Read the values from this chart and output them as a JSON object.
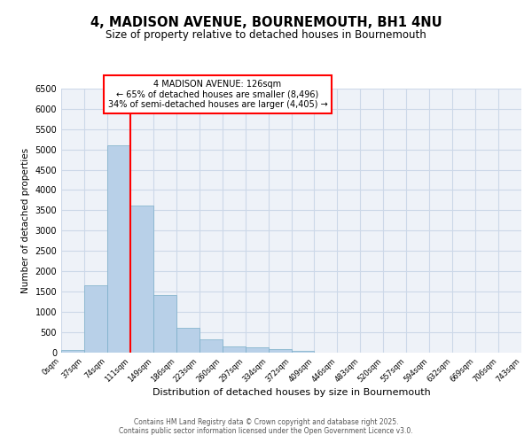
{
  "title": "4, MADISON AVENUE, BOURNEMOUTH, BH1 4NU",
  "subtitle": "Size of property relative to detached houses in Bournemouth",
  "xlabel": "Distribution of detached houses by size in Bournemouth",
  "ylabel": "Number of detached properties",
  "bar_values": [
    60,
    1650,
    5100,
    3620,
    1420,
    610,
    310,
    150,
    120,
    70,
    30,
    0,
    0,
    0,
    0,
    0,
    0,
    0,
    0,
    0
  ],
  "bar_labels": [
    "0sqm",
    "37sqm",
    "74sqm",
    "111sqm",
    "149sqm",
    "186sqm",
    "223sqm",
    "260sqm",
    "297sqm",
    "334sqm",
    "372sqm",
    "409sqm",
    "446sqm",
    "483sqm",
    "520sqm",
    "557sqm",
    "594sqm",
    "632sqm",
    "669sqm",
    "706sqm",
    "743sqm"
  ],
  "bar_color": "#b8d0e8",
  "bar_edgecolor": "#7aaec8",
  "vline_color": "red",
  "ylim": [
    0,
    6500
  ],
  "yticks": [
    0,
    500,
    1000,
    1500,
    2000,
    2500,
    3000,
    3500,
    4000,
    4500,
    5000,
    5500,
    6000,
    6500
  ],
  "annotation_title": "4 MADISON AVENUE: 126sqm",
  "annotation_line1": "← 65% of detached houses are smaller (8,496)",
  "annotation_line2": "34% of semi-detached houses are larger (4,405) →",
  "grid_color": "#ccd8e8",
  "bg_color": "#eef2f8",
  "footer1": "Contains HM Land Registry data © Crown copyright and database right 2025.",
  "footer2": "Contains public sector information licensed under the Open Government Licence v3.0."
}
